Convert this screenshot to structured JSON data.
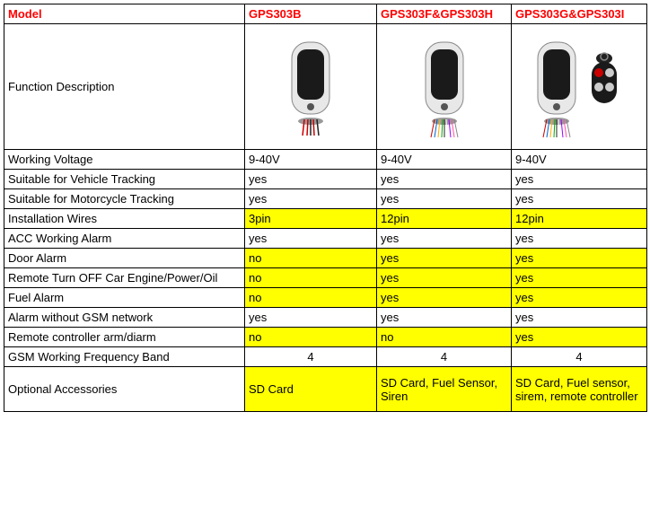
{
  "colors": {
    "highlight": "#ffff00",
    "header_text": "#ff0000",
    "border": "#000000",
    "background": "#ffffff"
  },
  "columns": {
    "label": "Model",
    "c1": "GPS303B",
    "c2": "GPS303F&GPS303H",
    "c3": "GPS303G&GPS303I"
  },
  "device_row_label": "Function Description",
  "rows": [
    {
      "label": "Working Voltage",
      "v1": "9-40V",
      "v2": "9-40V",
      "v3": "9-40V",
      "hl": false,
      "center": false
    },
    {
      "label": "Suitable for Vehicle Tracking",
      "v1": "yes",
      "v2": "yes",
      "v3": "yes",
      "hl": false,
      "center": false
    },
    {
      "label": "Suitable for Motorcycle Tracking",
      "v1": "yes",
      "v2": "yes",
      "v3": "yes",
      "hl": false,
      "center": false
    },
    {
      "label": "Installation Wires",
      "v1": "3pin",
      "v2": "12pin",
      "v3": "12pin",
      "hl": true,
      "center": false
    },
    {
      "label": "ACC Working Alarm",
      "v1": "yes",
      "v2": "yes",
      "v3": "yes",
      "hl": false,
      "center": false
    },
    {
      "label": "Door Alarm",
      "v1": "no",
      "v2": "yes",
      "v3": "yes",
      "hl": true,
      "center": false
    },
    {
      "label": "Remote Turn OFF Car Engine/Power/Oil",
      "v1": "no",
      "v2": "yes",
      "v3": "yes",
      "hl": true,
      "center": false
    },
    {
      "label": "Fuel Alarm",
      "v1": "no",
      "v2": "yes",
      "v3": "yes",
      "hl": true,
      "center": false
    },
    {
      "label": "Alarm without GSM network",
      "v1": "yes",
      "v2": "yes",
      "v3": "yes",
      "hl": false,
      "center": false
    },
    {
      "label": "Remote controller arm/diarm",
      "v1": "no",
      "v2": "no",
      "v3": "yes",
      "hl": true,
      "center": false
    },
    {
      "label": "GSM Working Frequency Band",
      "v1": "4",
      "v2": "4",
      "v3": "4",
      "hl": false,
      "center": true
    },
    {
      "label": "Optional Accessories",
      "v1": "SD Card",
      "v2": "SD Card, Fuel Sensor, Siren",
      "v3": "SD Card, Fuel sensor, sirem, remote controller",
      "hl": true,
      "center": false,
      "tall": true
    }
  ]
}
